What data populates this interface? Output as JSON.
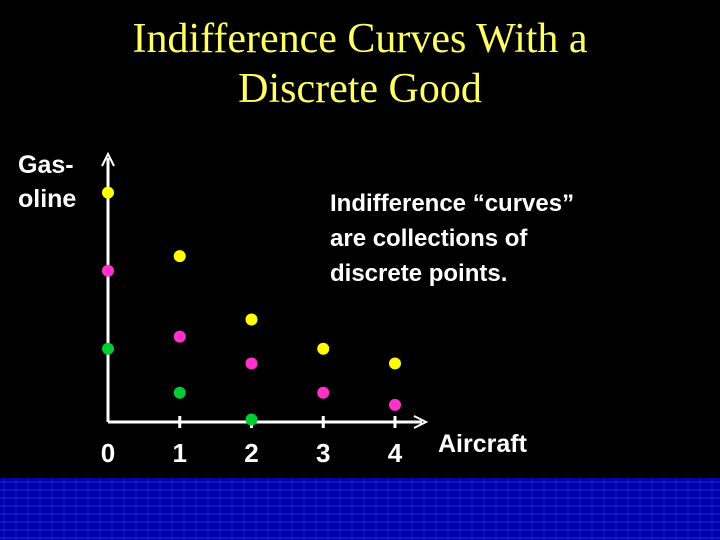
{
  "slide": {
    "title_line1": "Indifference Curves With a",
    "title_line2": "Discrete Good",
    "ylabel_line1": "Gas-",
    "ylabel_line2": "oline",
    "note_line1": "Indifference “curves”",
    "note_line2": "are collections of",
    "note_line3": "discrete points.",
    "xlabel": "Aircraft"
  },
  "colors": {
    "background": "#000000",
    "title": "#ffff66",
    "axis": "#ffffff",
    "text": "#ffffff",
    "curve_yellow": "#ffff00",
    "curve_magenta": "#ff33cc",
    "curve_green": "#00cc33",
    "band_blue": "#0000aa"
  },
  "chart_data": {
    "type": "scatter",
    "xlabel": "Aircraft",
    "ylabel": "Gasoline",
    "x_ticks": [
      "0",
      "1",
      "2",
      "3",
      "4"
    ],
    "xlim": [
      0,
      4
    ],
    "ylim": [
      0,
      10
    ],
    "series": [
      {
        "color": "#ffff00",
        "points": [
          [
            0,
            9.4
          ],
          [
            1,
            6.8
          ],
          [
            2,
            4.2
          ],
          [
            3,
            3.0
          ],
          [
            4,
            2.4
          ]
        ]
      },
      {
        "color": "#ff33cc",
        "points": [
          [
            0,
            6.2
          ],
          [
            1,
            3.5
          ],
          [
            2,
            2.4
          ],
          [
            3,
            1.2
          ],
          [
            4,
            0.7
          ]
        ]
      },
      {
        "color": "#00cc33",
        "points": [
          [
            0,
            3.0
          ],
          [
            1,
            1.2
          ],
          [
            2,
            0.1
          ]
        ]
      }
    ]
  }
}
